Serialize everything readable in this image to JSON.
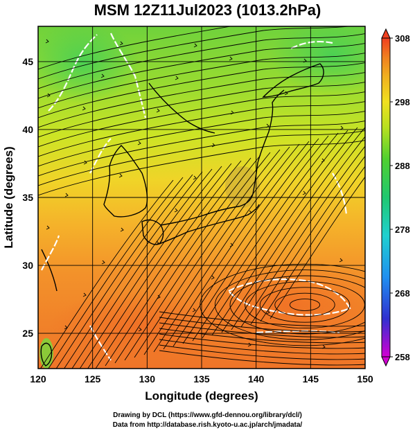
{
  "title": "MSM 12Z11Jul2023 (1013.2hPa)",
  "map": {
    "xlabel": "Longitude (degrees)",
    "ylabel": "Latitude  (degrees)",
    "lon_range": [
      120,
      150
    ],
    "lat_range": [
      22.4,
      47.6
    ],
    "lon_ticks": [
      "120",
      "125",
      "130",
      "135",
      "140",
      "145",
      "150"
    ],
    "lat_ticks": [
      "25",
      "30",
      "35",
      "40",
      "45"
    ],
    "field": "temperature (K)",
    "overlay": "streamlines"
  },
  "colorbar": {
    "min": 258,
    "max": 308,
    "ticks": [
      "308",
      "298",
      "288",
      "278",
      "268",
      "258"
    ],
    "colors": [
      "#d200d2",
      "#3030d0",
      "#2090f0",
      "#20d0d0",
      "#20c870",
      "#50d030",
      "#b8e020",
      "#f0e020",
      "#f0b020",
      "#f08020",
      "#f04020",
      "#e83a3a"
    ]
  },
  "footer": {
    "line1": "Drawing by DCL (https://www.gfd-dennou.org/library/dcl/)",
    "line2": "Data from http://database.rish.kyoto-u.ac.jp/arch/jmadata/"
  }
}
